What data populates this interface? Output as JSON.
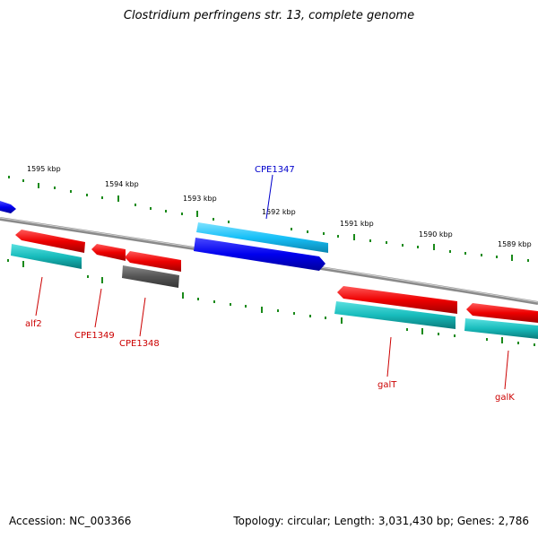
{
  "title": "Clostridium perfringens str. 13, complete genome",
  "accession_text": "Accession: NC_003366",
  "summary_text": "Topology: circular; Length: 3,031,430 bp; Genes: 2,786",
  "colors": {
    "forward_gene": "#ff0000",
    "reverse_gene": "#0000ee",
    "cds_cyan": "#1fc4c4",
    "cds_lightblue": "#1ec8ff",
    "pseudo_gray": "#555555",
    "backbone": "#8a8a8a",
    "ticks": "#1a8a1a",
    "label_red": "#cc0000",
    "label_blue": "#0000cc"
  },
  "tick_labels": [
    "1595 kbp",
    "1594 kbp",
    "1593 kbp",
    "1592 kbp",
    "1591 kbp",
    "1590 kbp",
    "1589 kbp"
  ],
  "gene_labels": {
    "cpe1347": "CPE1347",
    "alf2": "alf2",
    "cpe1349": "CPE1349",
    "cpe1348": "CPE1348",
    "galt": "galT",
    "galk": "galK"
  }
}
